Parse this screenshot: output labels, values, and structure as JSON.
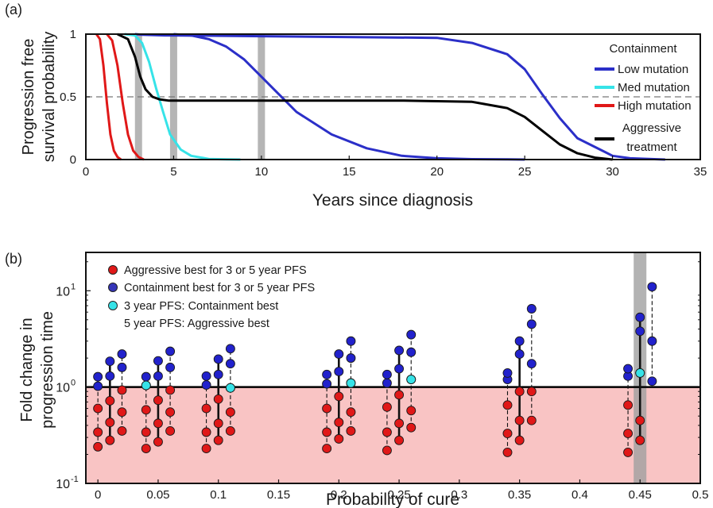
{
  "chart_data": [
    {
      "panel": "(a)",
      "type": "line",
      "xlabel": "Years since diagnosis",
      "ylabel_line1": "Progression free",
      "ylabel_line2": "survival probability",
      "xlim": [
        0,
        35
      ],
      "ylim": [
        0,
        1
      ],
      "xticks": [
        "0",
        "5",
        "10",
        "15",
        "20",
        "25",
        "30",
        "35"
      ],
      "yticks": [
        "0",
        "0.5",
        "1"
      ],
      "reference_line": {
        "y": 0.5,
        "style": "dashed"
      },
      "highlight_years": [
        3,
        5,
        10
      ],
      "legend": {
        "title": "Containment",
        "placement": "right",
        "entries": [
          "Low mutation",
          "Med mutation",
          "High mutation"
        ],
        "extra_line1": "Aggressive",
        "extra_line2": "treatment"
      },
      "series": [
        {
          "name": "Low mutation",
          "color": "#2b2fc8",
          "x": [
            2.8,
            3.2,
            4.5,
            5,
            20,
            22,
            24,
            25,
            26,
            27,
            28,
            30,
            31,
            33
          ],
          "y": [
            1,
            0.995,
            0.99,
            0.99,
            0.97,
            0.93,
            0.84,
            0.72,
            0.52,
            0.33,
            0.17,
            0.03,
            0.01,
            0
          ]
        },
        {
          "name": "Low mutation",
          "color": "#2b2fc8",
          "x": [
            5,
            6,
            7,
            8,
            9,
            10,
            11,
            12,
            14,
            16,
            18,
            20,
            22,
            24,
            25
          ],
          "y": [
            1,
            0.99,
            0.96,
            0.9,
            0.8,
            0.66,
            0.52,
            0.38,
            0.2,
            0.09,
            0.03,
            0.01,
            0.003,
            0.001,
            0
          ]
        },
        {
          "name": "Med mutation",
          "color": "#36e3e8",
          "x": [
            2.2,
            2.8,
            3.2,
            3.6,
            4,
            4.4,
            4.8,
            5.4,
            6,
            7,
            8,
            8.8
          ],
          "y": [
            1,
            0.99,
            0.93,
            0.78,
            0.57,
            0.38,
            0.2,
            0.08,
            0.03,
            0.005,
            0.001,
            0
          ]
        },
        {
          "name": "High mutation",
          "color": "#e01818",
          "x": [
            0.6,
            0.8,
            1,
            1.2,
            1.4,
            1.6,
            1.8,
            2
          ],
          "y": [
            1,
            0.96,
            0.75,
            0.45,
            0.2,
            0.07,
            0.02,
            0
          ]
        },
        {
          "name": "High mutation",
          "color": "#e01818",
          "x": [
            1.2,
            1.5,
            1.8,
            2.1,
            2.4,
            2.7,
            3,
            3.3
          ],
          "y": [
            1,
            0.95,
            0.75,
            0.45,
            0.2,
            0.07,
            0.02,
            0
          ]
        },
        {
          "name": "Aggressive treatment",
          "color": "#000000",
          "x": [
            1.8,
            2.4,
            2.8,
            3.1,
            3.4,
            3.8,
            4.2,
            4.7,
            6,
            10,
            18,
            22,
            24,
            25,
            26,
            27,
            28,
            29,
            30
          ],
          "y": [
            1,
            0.96,
            0.82,
            0.66,
            0.56,
            0.5,
            0.48,
            0.47,
            0.47,
            0.47,
            0.47,
            0.46,
            0.41,
            0.34,
            0.23,
            0.12,
            0.05,
            0.015,
            0
          ]
        }
      ]
    },
    {
      "panel": "(b)",
      "type": "scatter",
      "xlabel": "Probability of cure",
      "ylabel_line1": "Fold change in",
      "ylabel_line2": "progression time",
      "xlim": [
        -0.01,
        0.5
      ],
      "ylim": [
        0.1,
        25
      ],
      "yscale": "log",
      "xticks": [
        "0",
        "0.05",
        "0.1",
        "0.15",
        "0.2",
        "0.25",
        "0.3",
        "0.35",
        "0.4",
        "0.45",
        "0.5"
      ],
      "yticks": [
        {
          "base": "10",
          "exp": "-1",
          "value": 0.1
        },
        {
          "base": "10",
          "exp": "0",
          "value": 1
        },
        {
          "base": "10",
          "exp": "1",
          "value": 10
        }
      ],
      "reference_line": {
        "y": 1,
        "style": "solid"
      },
      "shaded_region": {
        "y_from": 0.1,
        "y_to": 1,
        "color": "#f9c4c4"
      },
      "highlight_x": 0.45,
      "legend": {
        "placement": "top-left",
        "entries": [
          {
            "text": "Aggressive best for 3 or 5 year PFS",
            "color": "#e01818"
          },
          {
            "text": "Containment best for 3 or 5 year PFS",
            "color": "#2f2fc8"
          },
          {
            "text": "3 year PFS: Containment best",
            "color": "#36e3e8"
          },
          {
            "text": "5 year PFS: Aggressive best",
            "color": null
          }
        ]
      },
      "groups": [
        {
          "x": 0.0,
          "values": [
            0.24,
            0.34,
            0.6,
            1.02,
            1.28
          ],
          "style": "dashed"
        },
        {
          "x": 0.01,
          "values": [
            0.28,
            0.43,
            0.72,
            1.3,
            1.85
          ],
          "style": "solid"
        },
        {
          "x": 0.02,
          "values": [
            0.35,
            0.55,
            0.93,
            1.6,
            2.2
          ],
          "style": "dashed"
        },
        {
          "x": 0.04,
          "values": [
            0.23,
            0.34,
            0.58,
            1.04,
            1.28
          ],
          "style": "dashed"
        },
        {
          "x": 0.05,
          "values": [
            0.27,
            0.42,
            0.73,
            1.3,
            1.87
          ],
          "style": "solid"
        },
        {
          "x": 0.06,
          "values": [
            0.35,
            0.55,
            0.93,
            1.6,
            2.35
          ],
          "style": "dashed"
        },
        {
          "x": 0.09,
          "values": [
            0.23,
            0.34,
            0.6,
            1.05,
            1.3
          ],
          "style": "dashed"
        },
        {
          "x": 0.1,
          "values": [
            0.28,
            0.42,
            0.75,
            1.35,
            1.95
          ],
          "style": "solid"
        },
        {
          "x": 0.11,
          "values": [
            0.35,
            0.55,
            0.98,
            1.75,
            2.5
          ],
          "style": "dashed"
        },
        {
          "x": 0.19,
          "values": [
            0.23,
            0.34,
            0.6,
            1.08,
            1.35
          ],
          "style": "dashed"
        },
        {
          "x": 0.2,
          "values": [
            0.29,
            0.43,
            0.8,
            1.45,
            2.2
          ],
          "style": "solid"
        },
        {
          "x": 0.21,
          "values": [
            0.35,
            0.55,
            1.1,
            2.0,
            3.0
          ],
          "style": "dashed"
        },
        {
          "x": 0.24,
          "values": [
            0.22,
            0.34,
            0.62,
            1.1,
            1.35
          ],
          "style": "dashed"
        },
        {
          "x": 0.25,
          "values": [
            0.28,
            0.42,
            0.83,
            1.55,
            2.4
          ],
          "style": "solid"
        },
        {
          "x": 0.26,
          "values": [
            0.38,
            0.57,
            1.2,
            2.3,
            3.5
          ],
          "style": "dashed"
        },
        {
          "x": 0.34,
          "values": [
            0.21,
            0.33,
            0.65,
            1.2,
            1.4
          ],
          "style": "dashed"
        },
        {
          "x": 0.35,
          "values": [
            0.28,
            0.45,
            0.9,
            2.2,
            3.0
          ],
          "style": "solid"
        },
        {
          "x": 0.36,
          "values": [
            0.45,
            0.9,
            1.75,
            4.5,
            6.5
          ],
          "style": "dashed"
        },
        {
          "x": 0.44,
          "values": [
            0.21,
            0.33,
            0.65,
            1.3,
            1.55
          ],
          "style": "dashed"
        },
        {
          "x": 0.45,
          "values": [
            0.28,
            0.45,
            1.4,
            3.8,
            5.3
          ],
          "style": "solid"
        },
        {
          "x": 0.46,
          "values": [
            1.15,
            3.0,
            11
          ],
          "style": "dashed"
        }
      ],
      "cyan_points": [
        [
          0.04,
          1.04
        ],
        [
          0.11,
          0.98
        ],
        [
          0.21,
          1.1
        ],
        [
          0.26,
          1.2
        ],
        [
          0.45,
          1.4
        ]
      ],
      "colors": {
        "red": "#e01818",
        "blue": "#2222cc",
        "cyan": "#36e3e8",
        "shade": "#f9c4c4",
        "highlight": "#a0a0a0"
      }
    }
  ]
}
